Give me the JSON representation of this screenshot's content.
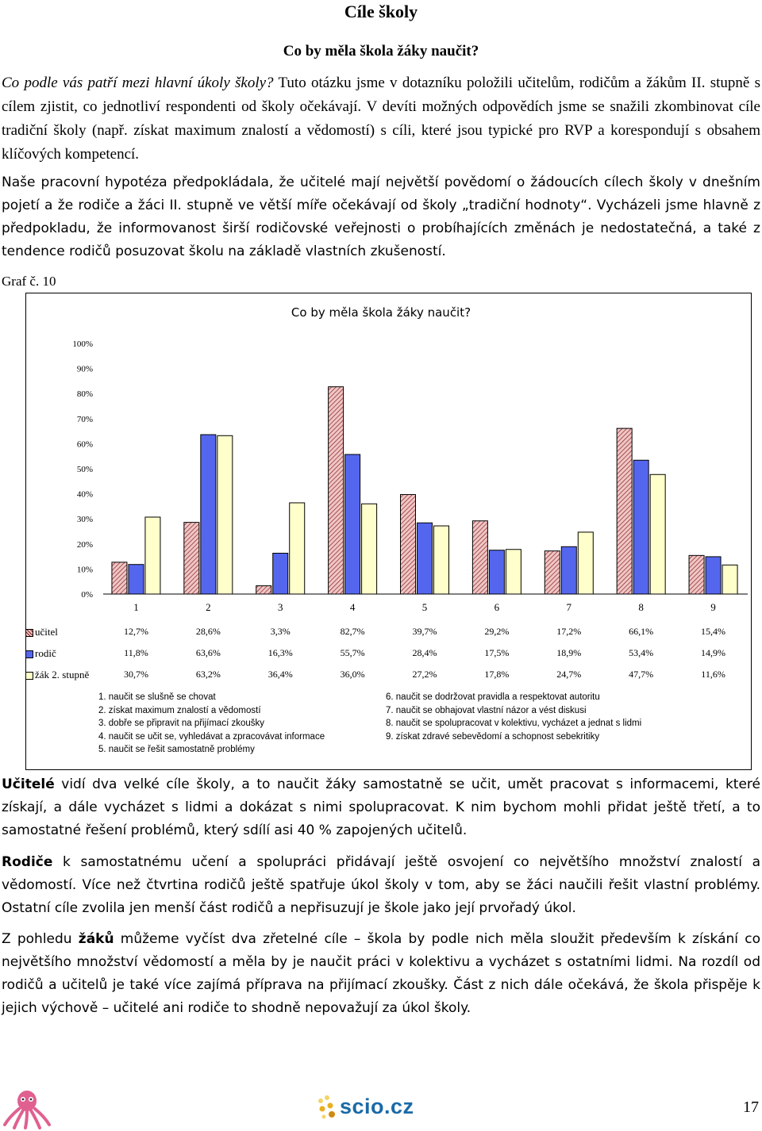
{
  "title": "Cíle školy",
  "subtitle": "Co by měla škola žáky naučit?",
  "intro": {
    "italic_lead": "Co podle vás patří mezi hlavní úkoly školy?",
    "rest": " Tuto otázku jsme v dotazníku položili učitelům, rodičům a žákům II. stupně s cílem zjistit, co jednotliví respondenti od školy očekávají. V devíti možných odpovědích jsme se snažili zkombinovat cíle tradiční školy (např. získat maximum znalostí a vědomostí) s cíli, které jsou typické pro RVP a korespondují s obsahem klíčových kompetencí."
  },
  "hypothesis": "Naše pracovní hypotéza předpokládala, že učitelé mají největší povědomí o žádoucích cílech školy v dnešním pojetí a že rodiče a žáci II. stupně ve větší míře očekávají od školy „tradiční hodnoty“. Vycházeli jsme hlavně z předpokladu, že informovanost širší rodičovské veřejnosti o probíhajících změnách je nedostatečná, a také z tendence rodičů posuzovat školu na základě vlastních zkušeností.",
  "graf_label": "Graf č. 10",
  "chart_data": {
    "type": "bar",
    "title": "Co by měla škola žáky naučit?",
    "categories": [
      "1",
      "2",
      "3",
      "4",
      "5",
      "6",
      "7",
      "8",
      "9"
    ],
    "ylim": [
      0,
      100
    ],
    "yticks": [
      "0%",
      "10%",
      "20%",
      "30%",
      "40%",
      "50%",
      "60%",
      "70%",
      "80%",
      "90%",
      "100%"
    ],
    "series": [
      {
        "name": "učitel",
        "values": [
          12.7,
          28.6,
          3.3,
          82.7,
          39.7,
          29.2,
          17.2,
          66.1,
          15.4
        ],
        "labels": [
          "12,7%",
          "28,6%",
          "3,3%",
          "82,7%",
          "39,7%",
          "29,2%",
          "17,2%",
          "66,1%",
          "15,4%"
        ]
      },
      {
        "name": "rodič",
        "values": [
          11.8,
          63.6,
          16.3,
          55.7,
          28.4,
          17.5,
          18.9,
          53.4,
          14.9
        ],
        "labels": [
          "11,8%",
          "63,6%",
          "16,3%",
          "55,7%",
          "28,4%",
          "17,5%",
          "18,9%",
          "53,4%",
          "14,9%"
        ]
      },
      {
        "name": "žák 2. stupně",
        "values": [
          30.7,
          63.2,
          36.4,
          36.0,
          27.2,
          17.8,
          24.7,
          47.7,
          11.6
        ],
        "labels": [
          "30,7%",
          "63,2%",
          "36,4%",
          "36,0%",
          "27,2%",
          "17,8%",
          "24,7%",
          "47,7%",
          "11,6%"
        ]
      }
    ],
    "colors": {
      "ucitel": "#e8b0b0",
      "ucitel_hatch": "#7a1a1a",
      "rodic": "#5566ee",
      "zak": "#ffffcc"
    }
  },
  "legend_left": [
    "1. naučit se slušně se chovat",
    "2. získat maximum znalostí a vědomostí",
    "3. dobře se připravit na přijímací zkoušky",
    "4. naučit se učit se, vyhledávat a zpracovávat informace",
    "5. naučit se řešit samostatně problémy"
  ],
  "legend_right": [
    "6. naučit se dodržovat pravidla a respektovat autoritu",
    "7. naučit se obhajovat vlastní názor a vést diskusi",
    "8. naučit se spolupracovat v kolektivu, vycházet a jednat s lidmi",
    "9. získat zdravé sebevědomí a schopnost sebekritiky"
  ],
  "para_ucitele": {
    "bold": "Učitelé",
    "text": " vidí dva velké cíle školy, a to naučit žáky samostatně se učit, umět pracovat s informacemi, které získají, a dále vycházet s lidmi a dokázat s nimi spolupracovat. K nim bychom mohli přidat ještě třetí, a to samostatné řešení problémů, který sdílí asi 40 % zapojených učitelů."
  },
  "para_rodice": {
    "bold": "Rodiče",
    "text": " k samostatnému učení a spolupráci přidávají ještě osvojení co největšího množství znalostí a vědomostí. Více než čtvrtina rodičů ještě spatřuje úkol školy v tom, aby se žáci naučili řešit vlastní problémy. Ostatní cíle zvolila jen menší část rodičů a nepřisuzují je škole jako její prvořadý úkol."
  },
  "para_zaci": {
    "pre": "Z pohledu ",
    "bold": "žáků",
    "text": " můžeme vyčíst dva zřetelné cíle – škola by podle nich měla sloužit především k získání co největšího množství vědomostí a měla by je naučit práci v kolektivu a vycházet s ostatními lidmi. Na rozdíl od rodičů a učitelů je také více zajímá příprava na přijímací zkoušky. Část z nich dále očekává, že škola přispěje k jejich výchově – učitelé ani rodiče to shodně nepovažují za úkol školy."
  },
  "footer": {
    "logo_text": "scio.cz",
    "page_number": "17"
  }
}
